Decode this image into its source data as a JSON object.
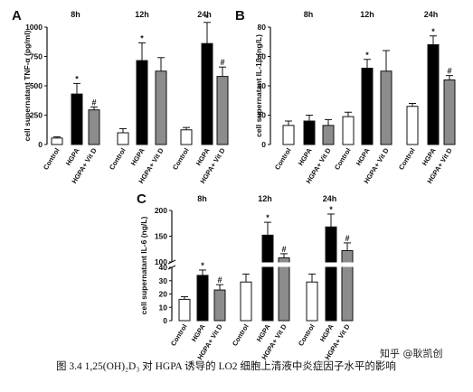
{
  "caption": "图 3.4 1,25(OH)₂D₃ 对 HGPA 诱导的 LO2 细胞上清液中炎症因子水平的影响",
  "watermark": "知乎 @耿凯创",
  "colors": {
    "Control": "#ffffff",
    "HGPA": "#000000",
    "HGPA+ Vit D": "#8c8c8c",
    "axis": "#111111"
  },
  "chart_data": [
    {
      "panel": "A",
      "type": "bar",
      "ylabel": "cell supernatant TNF-α (pg/ml)",
      "ylim": [
        0,
        1000
      ],
      "yticks": [
        0,
        250,
        500,
        750,
        1000
      ],
      "ytick_labels": [
        "0",
        "250",
        "500",
        "750",
        "1000"
      ],
      "groups": [
        "8h",
        "12h",
        "24h"
      ],
      "categories": [
        "Control",
        "HGPA",
        "HGPA+ Vit D"
      ],
      "series": [
        {
          "name": "Control",
          "values": [
            55,
            100,
            125
          ],
          "errors": [
            10,
            35,
            20
          ],
          "marks": [
            "",
            "",
            ""
          ]
        },
        {
          "name": "HGPA",
          "values": [
            430,
            715,
            860
          ],
          "errors": [
            90,
            150,
            180
          ],
          "marks": [
            "*",
            "*",
            "*"
          ]
        },
        {
          "name": "HGPA+ Vit D",
          "values": [
            295,
            625,
            580
          ],
          "errors": [
            25,
            115,
            80
          ],
          "marks": [
            "#",
            "",
            "#"
          ]
        }
      ]
    },
    {
      "panel": "B",
      "type": "bar",
      "ylabel": "cell supernatant IL-1β (ng/L)",
      "ylim": [
        0,
        80
      ],
      "yticks": [
        0,
        20,
        40,
        60,
        80
      ],
      "ytick_labels": [
        "0",
        "20",
        "40",
        "60",
        "80"
      ],
      "groups": [
        "8h",
        "12h",
        "24h"
      ],
      "categories": [
        "Control",
        "HGPA",
        "HGPA+ Vit D"
      ],
      "series": [
        {
          "name": "Control",
          "values": [
            13,
            19,
            26
          ],
          "errors": [
            3,
            3,
            2
          ],
          "marks": [
            "",
            "",
            ""
          ]
        },
        {
          "name": "HGPA",
          "values": [
            16,
            52,
            68
          ],
          "errors": [
            4,
            6,
            6
          ],
          "marks": [
            "",
            "*",
            "*"
          ]
        },
        {
          "name": "HGPA+ Vit D",
          "values": [
            13,
            50,
            44
          ],
          "errors": [
            4,
            14,
            3
          ],
          "marks": [
            "",
            "",
            "#"
          ]
        }
      ]
    },
    {
      "panel": "C",
      "type": "bar",
      "ylabel": "cell supernatant IL-6 (ng/L)",
      "ylim": [
        0,
        200
      ],
      "axis_break": [
        40,
        100
      ],
      "yticks": [
        0,
        10,
        20,
        30,
        40,
        100,
        150,
        200
      ],
      "ytick_labels": [
        "0",
        "10",
        "20",
        "30",
        "40",
        "100",
        "150",
        "200"
      ],
      "groups": [
        "8h",
        "12h",
        "24h"
      ],
      "categories": [
        "Control",
        "HGPA",
        "HGPA+ Vit D"
      ],
      "series": [
        {
          "name": "Control",
          "values": [
            16,
            29,
            29
          ],
          "errors": [
            2,
            6,
            6
          ],
          "marks": [
            "",
            "",
            ""
          ]
        },
        {
          "name": "HGPA",
          "values": [
            34,
            152,
            168
          ],
          "errors": [
            4,
            25,
            25
          ],
          "marks": [
            "*",
            "*",
            "*"
          ]
        },
        {
          "name": "HGPA+ Vit D",
          "values": [
            23,
            108,
            122
          ],
          "errors": [
            4,
            8,
            15
          ],
          "marks": [
            "#",
            "#",
            "#"
          ]
        }
      ]
    }
  ]
}
